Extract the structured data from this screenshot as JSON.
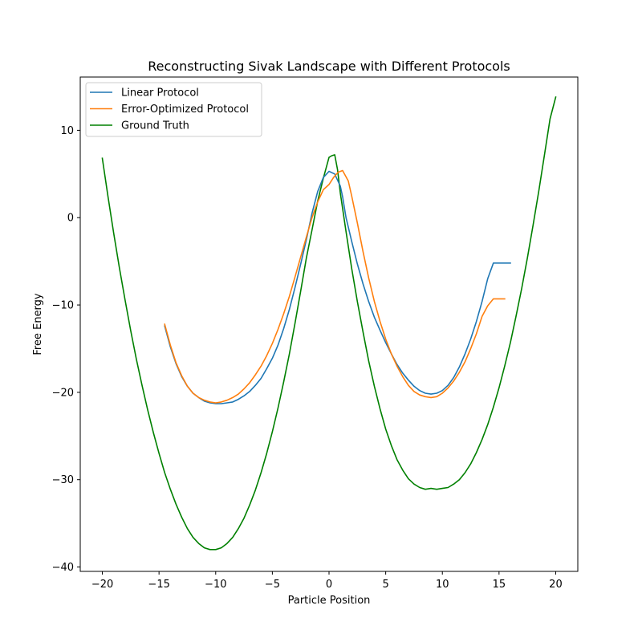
{
  "chart_data": {
    "type": "line",
    "title": "Reconstructing Sivak Landscape with Different Protocols",
    "xlabel": "Particle Position",
    "ylabel": "Free Energy",
    "xlim": [
      -21.95,
      21.95
    ],
    "ylim": [
      -40.5,
      16.1
    ],
    "xticks": [
      -20,
      -15,
      -10,
      -5,
      0,
      5,
      10,
      15,
      20
    ],
    "yticks": [
      -40,
      -30,
      -20,
      -10,
      0,
      10
    ],
    "xtick_labels": [
      "−20",
      "−15",
      "−10",
      "−5",
      "0",
      "5",
      "10",
      "15",
      "20"
    ],
    "ytick_labels": [
      "−40",
      "−30",
      "−20",
      "−10",
      "0",
      "10"
    ],
    "grid": false,
    "legend_position": "top-left",
    "series": [
      {
        "name": "Linear Protocol",
        "color": "#1f77b4",
        "x": [
          -14.5,
          -14.0,
          -13.5,
          -13.0,
          -12.5,
          -12.0,
          -11.5,
          -11.0,
          -10.5,
          -10.0,
          -9.5,
          -9.0,
          -8.5,
          -8.0,
          -7.5,
          -7.0,
          -6.5,
          -6.0,
          -5.5,
          -5.0,
          -4.5,
          -4.0,
          -3.5,
          -3.0,
          -2.5,
          -2.0,
          -1.5,
          -1.0,
          -0.5,
          0.0,
          0.5,
          1.0,
          1.2,
          1.5,
          2.0,
          2.5,
          3.0,
          3.5,
          4.0,
          4.5,
          5.0,
          5.5,
          6.0,
          6.5,
          7.0,
          7.5,
          8.0,
          8.5,
          9.0,
          9.5,
          10.0,
          10.5,
          11.0,
          11.5,
          12.0,
          12.5,
          13.0,
          13.5,
          14.0,
          14.5,
          15.0,
          15.5,
          16.0
        ],
        "y": [
          -12.4,
          -14.8,
          -16.7,
          -18.2,
          -19.3,
          -20.1,
          -20.6,
          -21.0,
          -21.2,
          -21.3,
          -21.3,
          -21.2,
          -21.1,
          -20.8,
          -20.4,
          -19.9,
          -19.2,
          -18.4,
          -17.3,
          -16.1,
          -14.6,
          -12.7,
          -10.5,
          -8.0,
          -5.3,
          -2.5,
          0.5,
          3.0,
          4.6,
          5.3,
          5.0,
          3.6,
          2.4,
          0.0,
          -2.7,
          -5.3,
          -7.6,
          -9.6,
          -11.4,
          -12.9,
          -14.3,
          -15.6,
          -16.8,
          -17.8,
          -18.6,
          -19.3,
          -19.8,
          -20.1,
          -20.2,
          -20.1,
          -19.8,
          -19.2,
          -18.3,
          -17.1,
          -15.6,
          -13.9,
          -11.9,
          -9.6,
          -7.0,
          -5.2,
          -5.2,
          -5.2,
          -5.2
        ],
        "values_note": ""
      },
      {
        "name": "Error-Optimized Protocol",
        "color": "#ff7f0e",
        "x": [
          -14.5,
          -14.0,
          -13.5,
          -13.0,
          -12.5,
          -12.0,
          -11.5,
          -11.0,
          -10.5,
          -10.0,
          -9.5,
          -9.0,
          -8.5,
          -8.0,
          -7.5,
          -7.0,
          -6.5,
          -6.0,
          -5.5,
          -5.0,
          -4.5,
          -4.0,
          -3.5,
          -3.0,
          -2.5,
          -2.0,
          -1.5,
          -1.0,
          -0.5,
          0.0,
          0.4,
          0.8,
          1.2,
          1.7,
          2.0,
          2.5,
          3.0,
          3.5,
          4.0,
          4.5,
          5.0,
          5.5,
          6.0,
          6.5,
          7.0,
          7.5,
          8.0,
          8.5,
          9.0,
          9.5,
          10.0,
          10.5,
          11.0,
          11.5,
          12.0,
          12.5,
          13.0,
          13.5,
          14.0,
          14.5,
          15.0,
          15.5
        ],
        "y": [
          -12.2,
          -14.6,
          -16.6,
          -18.1,
          -19.3,
          -20.1,
          -20.6,
          -20.9,
          -21.1,
          -21.2,
          -21.1,
          -20.9,
          -20.6,
          -20.2,
          -19.6,
          -18.9,
          -18.0,
          -17.0,
          -15.8,
          -14.4,
          -12.8,
          -11.0,
          -9.0,
          -6.8,
          -4.5,
          -2.2,
          0.0,
          1.8,
          3.2,
          3.8,
          4.6,
          5.2,
          5.4,
          4.2,
          2.5,
          -0.6,
          -3.9,
          -6.9,
          -9.6,
          -11.9,
          -13.9,
          -15.6,
          -17.0,
          -18.2,
          -19.2,
          -19.9,
          -20.3,
          -20.5,
          -20.6,
          -20.5,
          -20.1,
          -19.5,
          -18.7,
          -17.7,
          -16.5,
          -15.0,
          -13.3,
          -11.3,
          -10.1,
          -9.3,
          -9.3,
          -9.3
        ]
      },
      {
        "name": "Ground Truth",
        "color": "#008000",
        "x": [
          -20.0,
          -19.5,
          -19.0,
          -18.5,
          -18.0,
          -17.5,
          -17.0,
          -16.5,
          -16.0,
          -15.5,
          -15.0,
          -14.5,
          -14.0,
          -13.5,
          -13.0,
          -12.5,
          -12.0,
          -11.5,
          -11.0,
          -10.5,
          -10.0,
          -9.5,
          -9.0,
          -8.5,
          -8.0,
          -7.5,
          -7.0,
          -6.5,
          -6.0,
          -5.5,
          -5.0,
          -4.5,
          -4.0,
          -3.5,
          -3.0,
          -2.5,
          -2.0,
          -1.5,
          -1.0,
          -0.5,
          0.0,
          0.25,
          0.5,
          0.75,
          1.0,
          1.5,
          2.0,
          2.5,
          3.0,
          3.5,
          4.0,
          4.5,
          5.0,
          5.5,
          6.0,
          6.5,
          7.0,
          7.5,
          8.0,
          8.5,
          9.0,
          9.5,
          10.0,
          10.5,
          11.0,
          11.5,
          12.0,
          12.5,
          13.0,
          13.5,
          14.0,
          14.5,
          15.0,
          15.5,
          16.0,
          16.5,
          17.0,
          17.5,
          18.0,
          18.5,
          19.0,
          19.5,
          20.0
        ],
        "y": [
          6.8,
          2.4,
          -1.8,
          -5.7,
          -9.4,
          -12.9,
          -16.2,
          -19.2,
          -22.0,
          -24.6,
          -27.0,
          -29.2,
          -31.1,
          -32.8,
          -34.3,
          -35.6,
          -36.6,
          -37.3,
          -37.8,
          -38.0,
          -38.0,
          -37.8,
          -37.3,
          -36.6,
          -35.6,
          -34.4,
          -32.9,
          -31.2,
          -29.2,
          -27.0,
          -24.5,
          -21.8,
          -18.8,
          -15.6,
          -12.1,
          -8.4,
          -4.6,
          -1.4,
          1.9,
          4.5,
          6.9,
          7.1,
          7.2,
          5.5,
          2.8,
          -1.6,
          -5.8,
          -9.6,
          -13.1,
          -16.4,
          -19.3,
          -21.9,
          -24.2,
          -26.1,
          -27.7,
          -28.9,
          -29.9,
          -30.5,
          -30.9,
          -31.1,
          -31.0,
          -31.1,
          -31.0,
          -30.9,
          -30.5,
          -30.0,
          -29.2,
          -28.2,
          -26.9,
          -25.4,
          -23.7,
          -21.7,
          -19.5,
          -17.0,
          -14.3,
          -11.3,
          -8.1,
          -4.6,
          -0.9,
          3.0,
          7.1,
          11.3,
          13.8
        ]
      }
    ]
  }
}
